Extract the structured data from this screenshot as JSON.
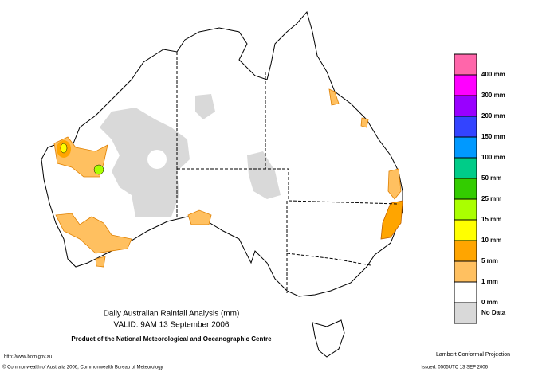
{
  "title": "Daily Australian Rainfall Analysis (mm)",
  "subtitle": "VALID: 9AM 13 September 2006",
  "product": "Product of the National Meteorological and Oceanographic Centre",
  "footer": {
    "url": "http://www.bom.gov.au",
    "copyright": "© Commonwealth of Australia 2006, Commonwealth Bureau of Meteorology",
    "projection": "Lambert Conformal Projection",
    "issued": "Issued: 0505UTC 13 SEP 2006"
  },
  "legend": {
    "colors": [
      "#ff66aa",
      "#ff00ff",
      "#9900ff",
      "#3344ff",
      "#0099ff",
      "#00cc88",
      "#33cc00",
      "#aaff00",
      "#ffff00",
      "#ffa500",
      "#ffc060",
      "#ffffff",
      "#d9d9d9"
    ],
    "labels": [
      "400 mm",
      "300 mm",
      "200 mm",
      "150 mm",
      "100 mm",
      "50 mm",
      "25 mm",
      "15 mm",
      "10 mm",
      "5 mm",
      "1 mm",
      "0 mm",
      "No Data"
    ]
  }
}
